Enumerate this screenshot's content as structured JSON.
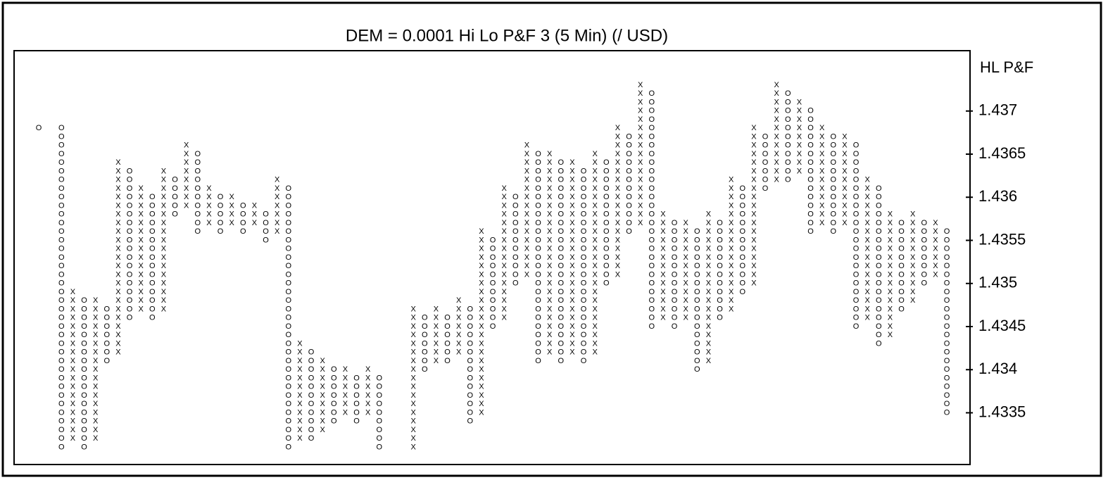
{
  "chart_data": {
    "type": "point-and-figure",
    "title": "DEM = 0.0001 Hi Lo P&F 3 (5 Min) (/ USD)",
    "axis_label": "HL P&F",
    "box_size": 0.0001,
    "color": "#000000",
    "ylim": [
      1.4329,
      1.4377
    ],
    "yticks": [
      1.437,
      1.4365,
      1.436,
      1.4355,
      1.435,
      1.4345,
      1.434,
      1.4335
    ],
    "columns": [
      {
        "type": "O",
        "high": 1.4368,
        "low": 1.4368
      },
      null,
      {
        "type": "O",
        "high": 1.4368,
        "low": 1.4331
      },
      {
        "type": "X",
        "high": 1.4349,
        "low": 1.4332
      },
      {
        "type": "O",
        "high": 1.4348,
        "low": 1.4331
      },
      {
        "type": "X",
        "high": 1.4348,
        "low": 1.4332
      },
      {
        "type": "O",
        "high": 1.4347,
        "low": 1.4341
      },
      {
        "type": "X",
        "high": 1.4364,
        "low": 1.4342
      },
      {
        "type": "O",
        "high": 1.4363,
        "low": 1.4346
      },
      {
        "type": "X",
        "high": 1.4361,
        "low": 1.4347
      },
      {
        "type": "O",
        "high": 1.436,
        "low": 1.4346
      },
      {
        "type": "X",
        "high": 1.4363,
        "low": 1.4347
      },
      {
        "type": "O",
        "high": 1.4362,
        "low": 1.4358
      },
      {
        "type": "X",
        "high": 1.4366,
        "low": 1.4359
      },
      {
        "type": "O",
        "high": 1.4365,
        "low": 1.4356
      },
      {
        "type": "X",
        "high": 1.4361,
        "low": 1.4357
      },
      {
        "type": "O",
        "high": 1.436,
        "low": 1.4356
      },
      {
        "type": "X",
        "high": 1.436,
        "low": 1.4357
      },
      {
        "type": "O",
        "high": 1.4359,
        "low": 1.4356
      },
      {
        "type": "X",
        "high": 1.4359,
        "low": 1.4357
      },
      {
        "type": "O",
        "high": 1.4358,
        "low": 1.4355
      },
      {
        "type": "X",
        "high": 1.4362,
        "low": 1.4356
      },
      {
        "type": "O",
        "high": 1.4361,
        "low": 1.4331
      },
      {
        "type": "X",
        "high": 1.4343,
        "low": 1.4332
      },
      {
        "type": "O",
        "high": 1.4342,
        "low": 1.4332
      },
      {
        "type": "X",
        "high": 1.4341,
        "low": 1.4333
      },
      {
        "type": "O",
        "high": 1.434,
        "low": 1.4334
      },
      {
        "type": "X",
        "high": 1.434,
        "low": 1.4335
      },
      {
        "type": "O",
        "high": 1.4339,
        "low": 1.4334
      },
      {
        "type": "X",
        "high": 1.434,
        "low": 1.4335
      },
      {
        "type": "O",
        "high": 1.4339,
        "low": 1.4331
      },
      null,
      null,
      {
        "type": "X",
        "high": 1.4347,
        "low": 1.4331
      },
      {
        "type": "O",
        "high": 1.4346,
        "low": 1.434
      },
      {
        "type": "X",
        "high": 1.4347,
        "low": 1.4341
      },
      {
        "type": "O",
        "high": 1.4346,
        "low": 1.4341
      },
      {
        "type": "X",
        "high": 1.4348,
        "low": 1.4342
      },
      {
        "type": "O",
        "high": 1.4347,
        "low": 1.4334
      },
      {
        "type": "X",
        "high": 1.4356,
        "low": 1.4335
      },
      {
        "type": "O",
        "high": 1.4355,
        "low": 1.4345
      },
      {
        "type": "X",
        "high": 1.4361,
        "low": 1.4346
      },
      {
        "type": "O",
        "high": 1.436,
        "low": 1.435
      },
      {
        "type": "X",
        "high": 1.4366,
        "low": 1.4351
      },
      {
        "type": "O",
        "high": 1.4365,
        "low": 1.4341
      },
      {
        "type": "X",
        "high": 1.4365,
        "low": 1.4342
      },
      {
        "type": "O",
        "high": 1.4364,
        "low": 1.4341
      },
      {
        "type": "X",
        "high": 1.4364,
        "low": 1.4342
      },
      {
        "type": "O",
        "high": 1.4363,
        "low": 1.4341
      },
      {
        "type": "X",
        "high": 1.4365,
        "low": 1.4342
      },
      {
        "type": "O",
        "high": 1.4364,
        "low": 1.435
      },
      {
        "type": "X",
        "high": 1.4368,
        "low": 1.4351
      },
      {
        "type": "O",
        "high": 1.4367,
        "low": 1.4356
      },
      {
        "type": "X",
        "high": 1.4373,
        "low": 1.4357
      },
      {
        "type": "O",
        "high": 1.4372,
        "low": 1.4345
      },
      {
        "type": "X",
        "high": 1.4358,
        "low": 1.4346
      },
      {
        "type": "O",
        "high": 1.4357,
        "low": 1.4345
      },
      {
        "type": "X",
        "high": 1.4357,
        "low": 1.4346
      },
      {
        "type": "O",
        "high": 1.4356,
        "low": 1.434
      },
      {
        "type": "X",
        "high": 1.4358,
        "low": 1.4341
      },
      {
        "type": "O",
        "high": 1.4357,
        "low": 1.4346
      },
      {
        "type": "X",
        "high": 1.4362,
        "low": 1.4347
      },
      {
        "type": "O",
        "high": 1.4361,
        "low": 1.4349
      },
      {
        "type": "X",
        "high": 1.4368,
        "low": 1.435
      },
      {
        "type": "O",
        "high": 1.4367,
        "low": 1.4361
      },
      {
        "type": "X",
        "high": 1.4373,
        "low": 1.4362
      },
      {
        "type": "O",
        "high": 1.4372,
        "low": 1.4362
      },
      {
        "type": "X",
        "high": 1.4371,
        "low": 1.4363
      },
      {
        "type": "O",
        "high": 1.437,
        "low": 1.4356
      },
      {
        "type": "X",
        "high": 1.4368,
        "low": 1.4357
      },
      {
        "type": "O",
        "high": 1.4367,
        "low": 1.4356
      },
      {
        "type": "X",
        "high": 1.4367,
        "low": 1.4357
      },
      {
        "type": "O",
        "high": 1.4366,
        "low": 1.4345
      },
      {
        "type": "X",
        "high": 1.4362,
        "low": 1.4346
      },
      {
        "type": "O",
        "high": 1.4361,
        "low": 1.4343
      },
      {
        "type": "X",
        "high": 1.4358,
        "low": 1.4344
      },
      {
        "type": "O",
        "high": 1.4357,
        "low": 1.4347
      },
      {
        "type": "X",
        "high": 1.4358,
        "low": 1.4348
      },
      {
        "type": "O",
        "high": 1.4357,
        "low": 1.435
      },
      {
        "type": "X",
        "high": 1.4357,
        "low": 1.4351
      },
      {
        "type": "O",
        "high": 1.4356,
        "low": 1.4335
      }
    ]
  }
}
